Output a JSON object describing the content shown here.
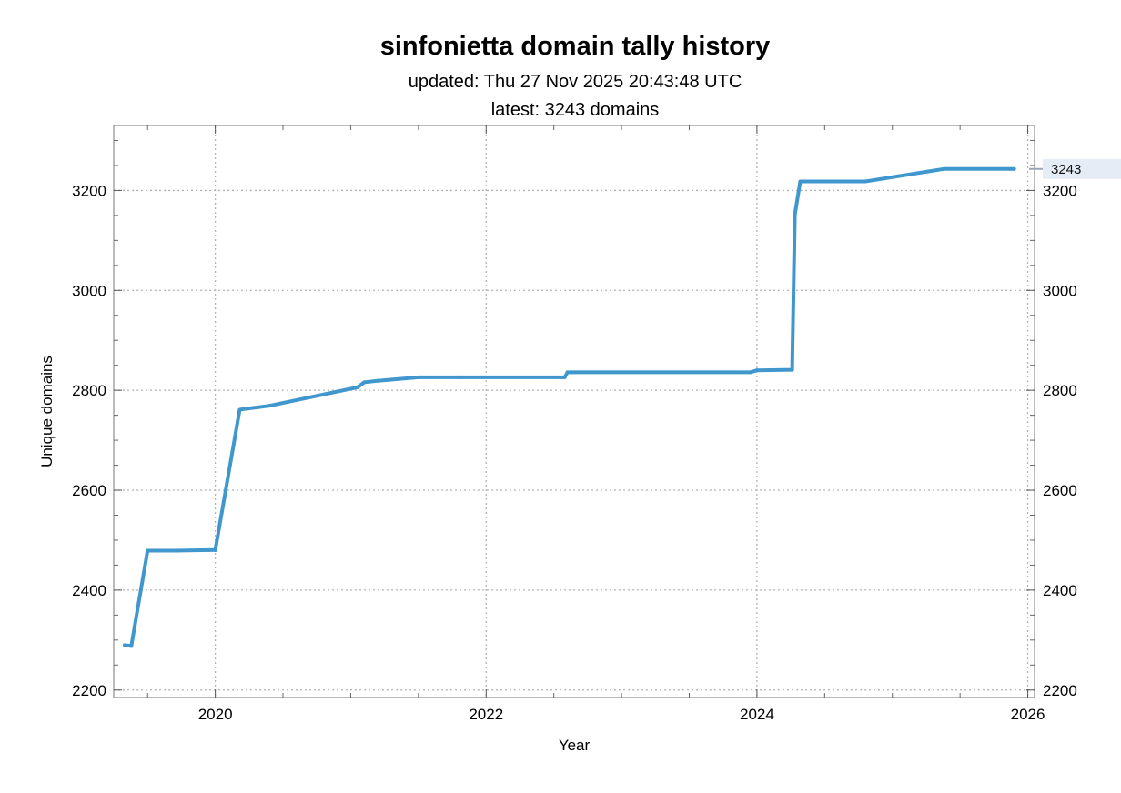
{
  "chart_data": {
    "type": "line",
    "title": "sinfonietta domain tally history",
    "subtitle_lines": [
      "updated: Thu 27 Nov 2025 20:43:48 UTC",
      "latest: 3243 domains"
    ],
    "xlabel": "Year",
    "ylabel": "Unique domains",
    "xlim": [
      2019.25,
      2026.05
    ],
    "ylim": [
      2185,
      3330
    ],
    "x_major_ticks": [
      2020,
      2022,
      2024,
      2026
    ],
    "x_tick_labels": [
      "2020",
      "2022",
      "2024",
      "2026"
    ],
    "y_major_ticks": [
      2200,
      2400,
      2600,
      2800,
      3000,
      3200
    ],
    "y_tick_labels": [
      "2200",
      "2400",
      "2600",
      "2800",
      "3000",
      "3200"
    ],
    "grid": true,
    "line_color": "#3f97cd",
    "latest_label": "3243",
    "series": [
      {
        "x": [
          2019.33,
          2019.38,
          2019.5,
          2019.7,
          2019.95,
          2020.0,
          2020.18,
          2020.2,
          2020.4,
          2021.05,
          2021.1,
          2021.2,
          2021.5,
          2021.8,
          2022.58,
          2022.6,
          2022.65,
          2023.95,
          2024.0,
          2024.26,
          2024.28,
          2024.32,
          2024.8,
          2025.38,
          2025.9
        ],
        "y": [
          2290,
          2288,
          2479,
          2479,
          2480,
          2480,
          2761,
          2762,
          2769,
          2806,
          2816,
          2819,
          2826,
          2826,
          2826,
          2836,
          2836,
          2836,
          2840,
          2841,
          3152,
          3218,
          3218,
          3243,
          3243
        ]
      }
    ]
  }
}
